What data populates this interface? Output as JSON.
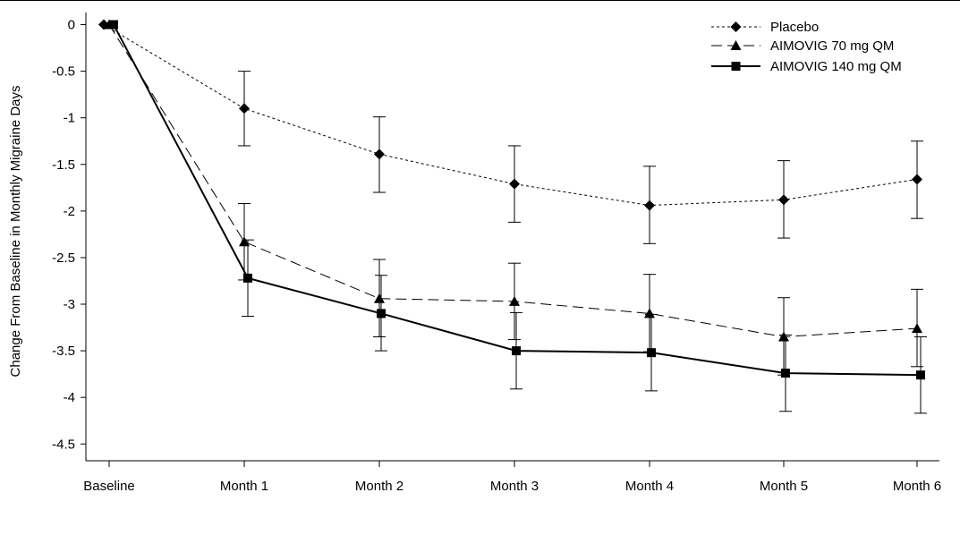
{
  "chart_data": {
    "type": "line",
    "title": "",
    "xlabel": "",
    "ylabel": "Change From Baseline in Monthly Migraine Days",
    "categories": [
      "Baseline",
      "Month 1",
      "Month 2",
      "Month 3",
      "Month 4",
      "Month 5",
      "Month 6"
    ],
    "yticks": [
      0,
      -0.5,
      -1,
      -1.5,
      -2,
      -2.5,
      -3,
      -3.5,
      -4,
      -4.5
    ],
    "ytick_labels": [
      "0",
      "-0.5",
      "-1",
      "-1.5",
      "-2",
      "-2.5",
      "-3",
      "-3.5",
      "-4",
      "-4.5"
    ],
    "ylim": [
      -4.68,
      0.13
    ],
    "grid": false,
    "legend_position": "top-right",
    "series": [
      {
        "name": "Placebo",
        "marker": "diamond",
        "line_style": "dotted",
        "color": "#000000",
        "values": [
          0,
          -0.9,
          -1.39,
          -1.71,
          -1.94,
          -1.88,
          -1.66
        ],
        "error_low": [
          null,
          -1.3,
          -1.8,
          -2.12,
          -2.35,
          -2.29,
          -2.08
        ],
        "error_high": [
          null,
          -0.5,
          -0.99,
          -1.3,
          -1.52,
          -1.46,
          -1.25
        ]
      },
      {
        "name": "AIMOVIG 70 mg QM",
        "marker": "triangle",
        "line_style": "dashed",
        "color": "#000000",
        "values": [
          0,
          -2.33,
          -2.94,
          -2.97,
          -3.1,
          -3.35,
          -3.26
        ],
        "error_low": [
          null,
          -2.74,
          -3.35,
          -3.38,
          -3.51,
          -3.76,
          -3.67
        ],
        "error_high": [
          null,
          -1.92,
          -2.52,
          -2.56,
          -2.68,
          -2.93,
          -2.84
        ]
      },
      {
        "name": "AIMOVIG 140 mg QM",
        "marker": "square",
        "line_style": "solid",
        "color": "#000000",
        "values": [
          0,
          -2.72,
          -3.1,
          -3.5,
          -3.52,
          -3.74,
          -3.76
        ],
        "error_low": [
          null,
          -3.13,
          -3.5,
          -3.91,
          -3.93,
          -4.15,
          -4.17
        ],
        "error_high": [
          null,
          -2.31,
          -2.69,
          -3.09,
          -3.11,
          -3.33,
          -3.35
        ]
      }
    ]
  }
}
